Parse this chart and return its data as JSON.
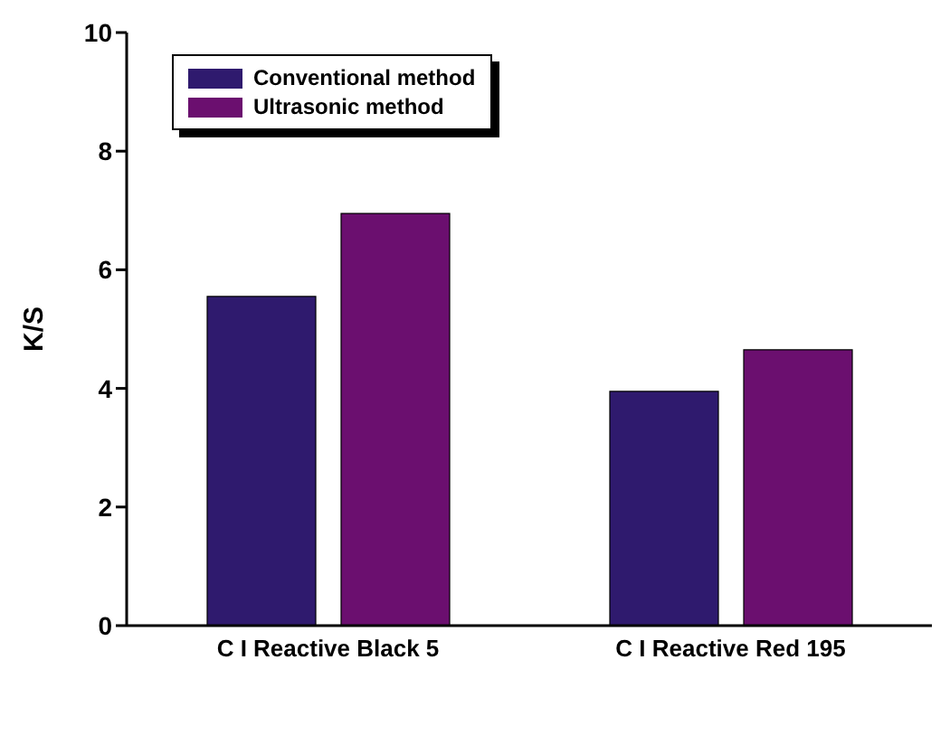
{
  "chart_data": {
    "type": "bar",
    "ylabel": "K/S",
    "categories": [
      "C I Reactive Black 5",
      "C I Reactive Red 195"
    ],
    "series": [
      {
        "name": "Conventional method",
        "color": "#2f1a6e",
        "values": [
          5.55,
          3.95
        ]
      },
      {
        "name": "Ultrasonic method",
        "color": "#6b0f6f",
        "values": [
          6.95,
          4.65
        ]
      }
    ],
    "ylim": [
      0,
      10
    ],
    "yticks": [
      0,
      2,
      4,
      6,
      8,
      10
    ],
    "grid": false,
    "legend": "top left"
  }
}
